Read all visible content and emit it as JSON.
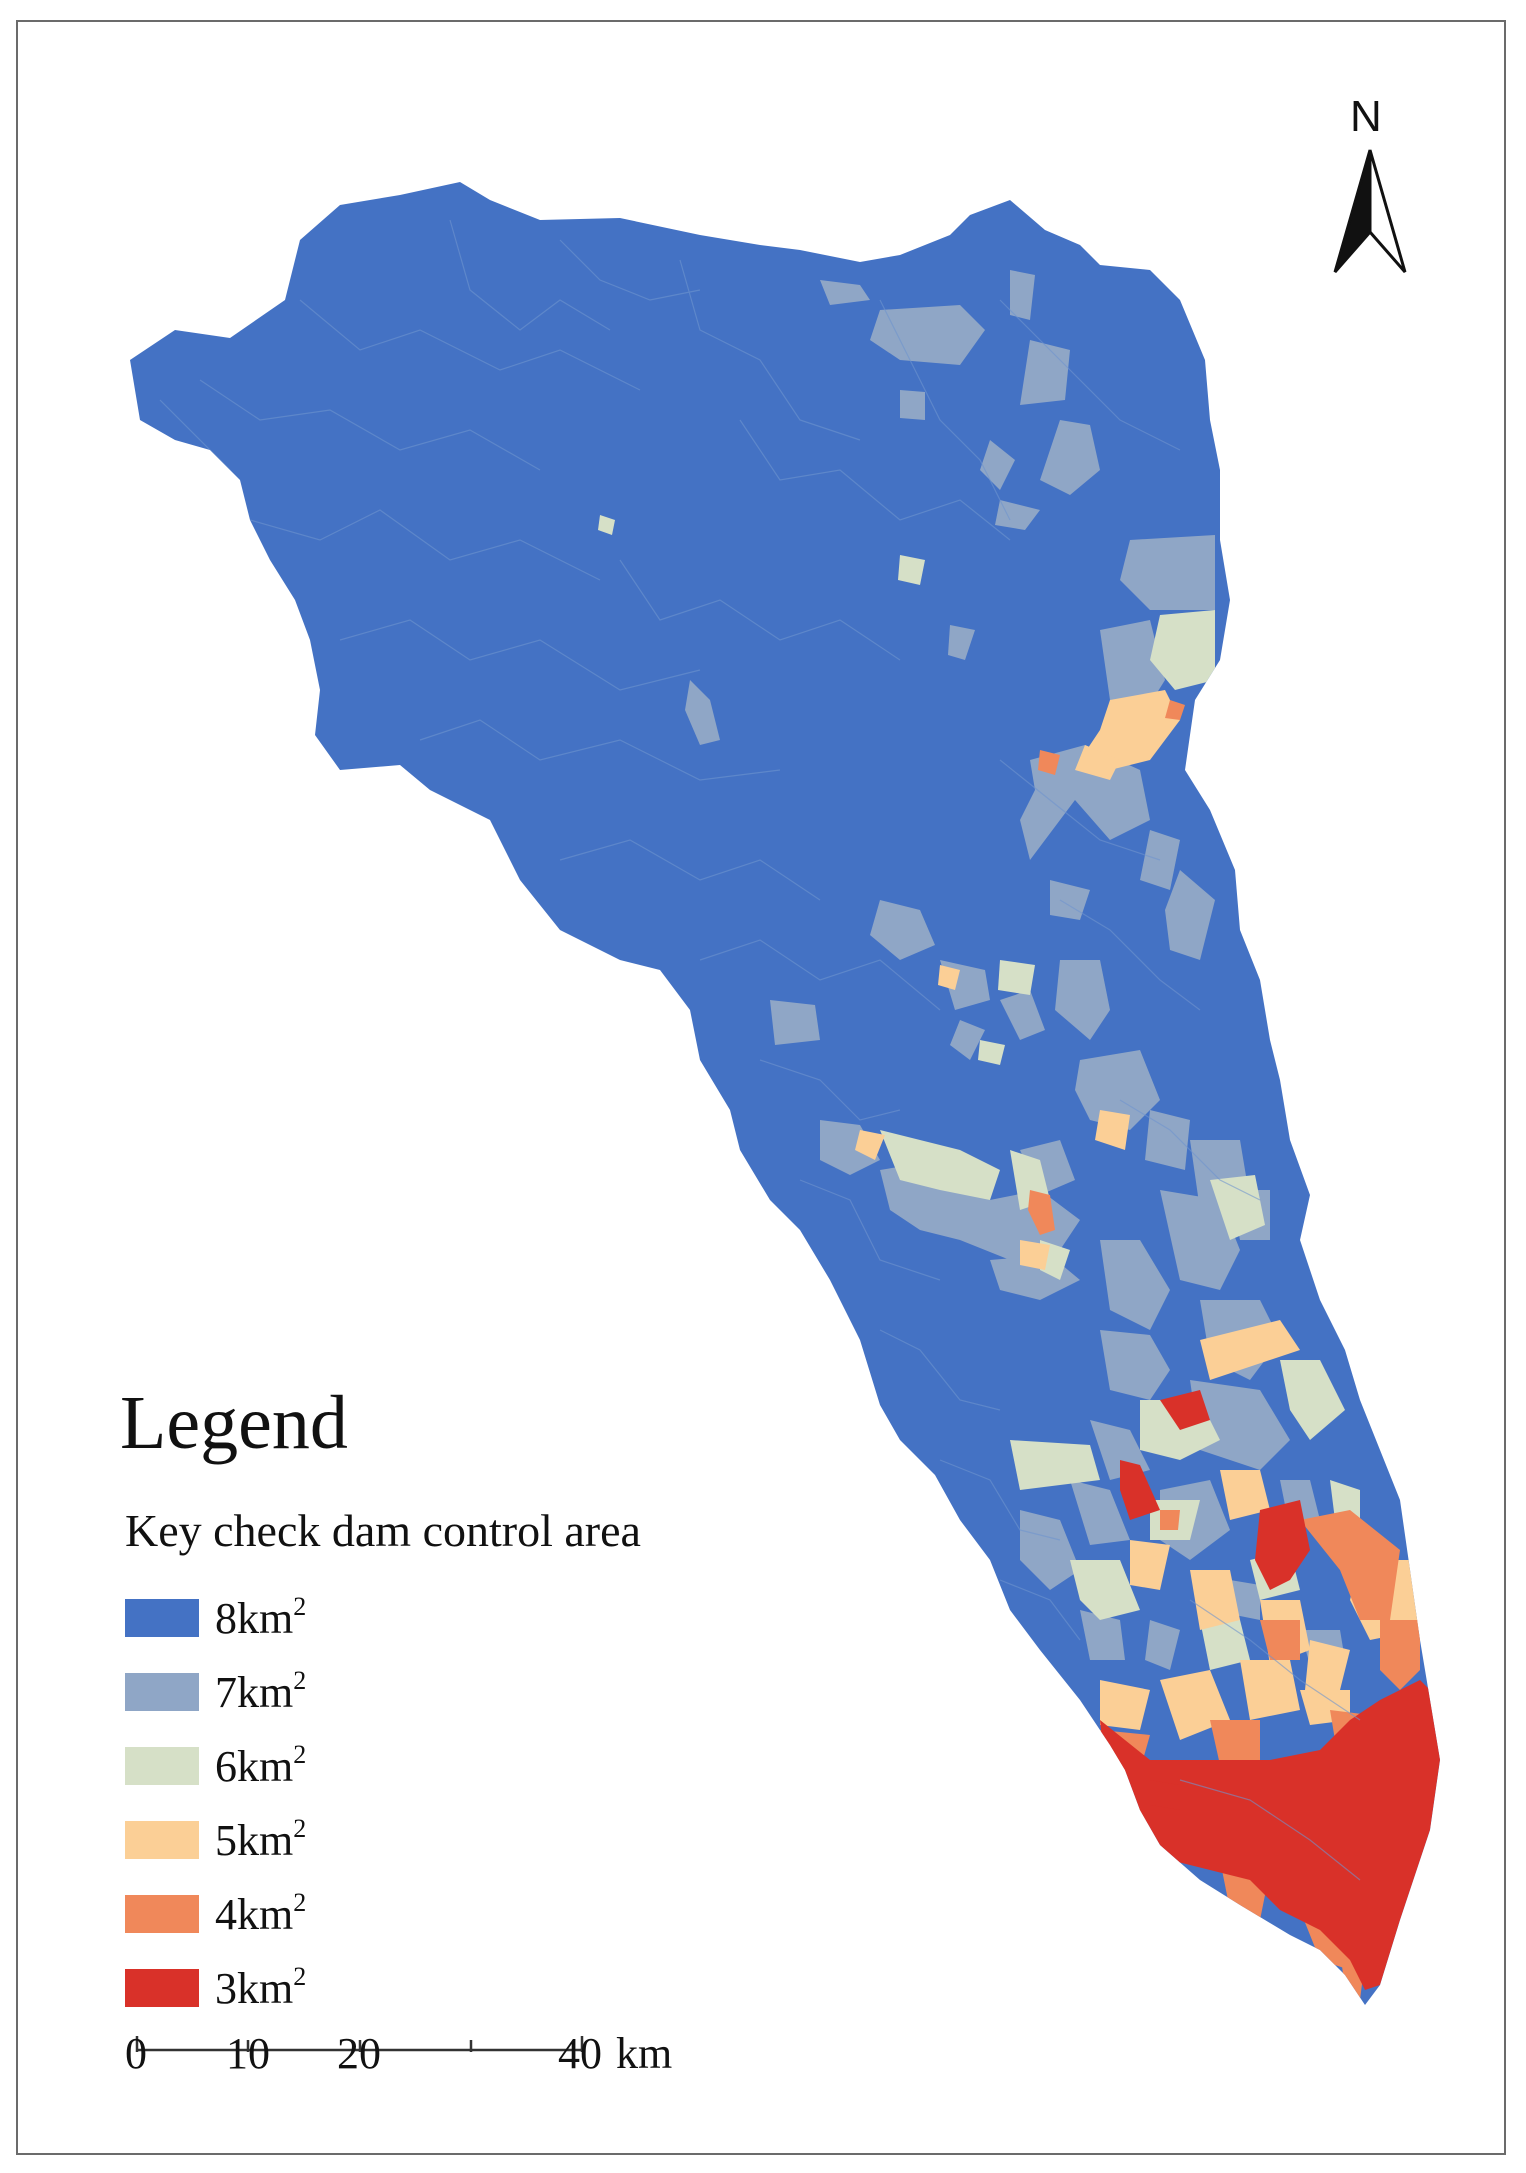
{
  "map": {
    "north_label": "N",
    "legend": {
      "title": "Legend",
      "subtitle": "Key check dam control area",
      "items": [
        {
          "value": "8km",
          "sup": "2",
          "color": "#4472c4"
        },
        {
          "value": "7km",
          "sup": "2",
          "color": "#8fa6c6"
        },
        {
          "value": "6km",
          "sup": "2",
          "color": "#d6e0c7"
        },
        {
          "value": "5km",
          "sup": "2",
          "color": "#fbcf96"
        },
        {
          "value": "4km",
          "sup": "2",
          "color": "#f0885a"
        },
        {
          "value": "3km",
          "sup": "2",
          "color": "#d93129"
        }
      ]
    },
    "scale_bar": {
      "labels": [
        "0",
        "10",
        "20",
        "40"
      ],
      "unit": "km"
    }
  }
}
